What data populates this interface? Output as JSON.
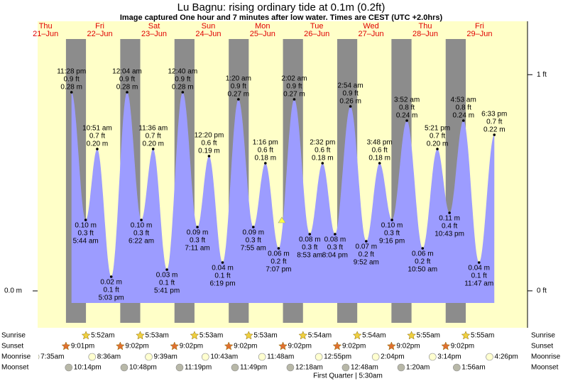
{
  "chart_data": {
    "type": "tide",
    "title": "Lu Bagnu: rising  ordinary tide at 0.1m (0.2ft)",
    "subtitle": "Image captured One hour and 7 minutes after low water. Times are CEST (UTC +2.0hrs)",
    "days": [
      {
        "name": "Thu",
        "date": "21–Jun"
      },
      {
        "name": "Fri",
        "date": "22–Jun"
      },
      {
        "name": "Sat",
        "date": "23–Jun"
      },
      {
        "name": "Sun",
        "date": "24–Jun"
      },
      {
        "name": "Mon",
        "date": "25–Jun"
      },
      {
        "name": "Tue",
        "date": "26–Jun"
      },
      {
        "name": "Wed",
        "date": "27–Jun"
      },
      {
        "name": "Thu",
        "date": "28–Jun"
      },
      {
        "name": "Fri",
        "date": "29–Jun"
      }
    ],
    "times": [
      "11:28 pm",
      "5:44 am",
      "10:51 am",
      "5:03 pm",
      "12:04 am",
      "6:22 am",
      "11:36 am",
      "5:41 pm",
      "12:40 am",
      "7:11 am",
      "12:20 pm",
      "6:19 pm",
      "1:20 am",
      "7:55 am",
      "1:16 pm",
      "7:07 pm",
      "2:02 am",
      "8:53 am",
      "2:32 pm",
      "8:04 pm",
      "2:54 am",
      "9:52 am",
      "3:48 pm",
      "9:16 pm",
      "3:52 am",
      "10:50 am",
      "5:21 pm",
      "10:43 pm",
      "4:53 am",
      "11:47 am",
      "6:33 pm"
    ],
    "values": [
      0.28,
      0.1,
      0.2,
      0.02,
      0.28,
      0.1,
      0.2,
      0.03,
      0.28,
      0.09,
      0.19,
      0.04,
      0.27,
      0.09,
      0.18,
      0.06,
      0.27,
      0.08,
      0.18,
      0.08,
      0.26,
      0.07,
      0.18,
      0.1,
      0.24,
      0.06,
      0.2,
      0.11,
      0.24,
      0.04,
      0.22
    ],
    "value_labels": [
      "0.28 m",
      "0.10 m",
      "0.20 m",
      "0.02 m",
      "0.28 m",
      "0.10 m",
      "0.20 m",
      "0.03 m",
      "0.28 m",
      "0.09 m",
      "0.19 m",
      "0.04 m",
      "0.27 m",
      "0.09 m",
      "0.18 m",
      "0.06 m",
      "0.27 m",
      "0.08 m",
      "0.18 m",
      "0.08 m",
      "0.26 m",
      "0.07 m",
      "0.18 m",
      "0.10 m",
      "0.24 m",
      "0.06 m",
      "0.20 m",
      "0.11 m",
      "0.24 m",
      "0.04 m",
      "0.22 m"
    ],
    "feet_labels": [
      "0.9 ft",
      "0.3 ft",
      "0.7 ft",
      "0.1 ft",
      "0.9 ft",
      "0.3 ft",
      "0.7 ft",
      "0.1 ft",
      "0.9 ft",
      "0.3 ft",
      "0.6 ft",
      "0.1 ft",
      "0.9 ft",
      "0.3 ft",
      "0.6 ft",
      "0.2 ft",
      "0.9 ft",
      "0.3 ft",
      "0.6 ft",
      "0.3 ft",
      "0.9 ft",
      "0.2 ft",
      "0.6 ft",
      "0.3 ft",
      "0.8 ft",
      "0.2 ft",
      "0.7 ft",
      "0.4 ft",
      "0.8 ft",
      "0.1 ft",
      "0.7 ft"
    ],
    "color": "#9c9cff",
    "ylim": [
      -0.052,
      0.38
    ],
    "yticks": [
      {
        "value": 0,
        "label": "0.0 m"
      }
    ],
    "y2lim": [
      -0.171,
      1.247
    ],
    "y2ticks": [
      {
        "value": 0,
        "label": "0 ft"
      },
      {
        "value": 1,
        "label": "1 ft"
      }
    ],
    "rows": [
      {
        "name": "Sunrise",
        "times": [
          null,
          "5:52am",
          "5:53am",
          "5:53am",
          "5:53am",
          "5:54am",
          "5:54am",
          "5:55am",
          "5:55am"
        ]
      },
      {
        "name": "Sunset",
        "times": [
          "9:01pm",
          "9:02pm",
          "9:02pm",
          "9:02pm",
          "9:02pm",
          "9:02pm",
          "9:02pm",
          "9:02pm",
          null
        ]
      },
      {
        "name": "Moonrise",
        "times": [
          "7:35am",
          "8:36am",
          "9:39am",
          "10:43am",
          "11:48am",
          "12:55pm",
          "2:04pm",
          "3:14pm",
          "4:26pm"
        ]
      },
      {
        "name": "Moonset",
        "times": [
          "10:14pm",
          "10:48pm",
          "11:19pm",
          "11:49pm",
          null,
          "12:18am",
          "12:48am",
          "1:20am",
          "1:56am"
        ]
      }
    ],
    "moon_phase": "First Quarter | 5:30am"
  }
}
